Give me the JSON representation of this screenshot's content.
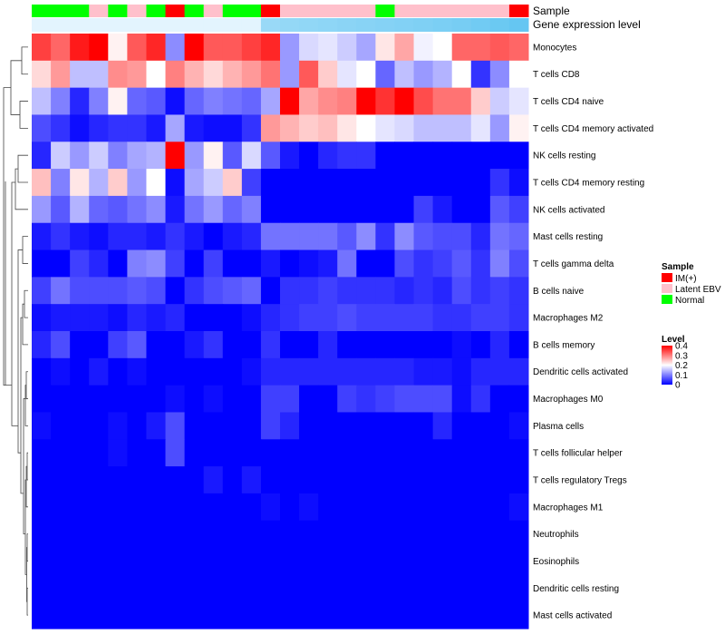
{
  "chart_data": {
    "type": "heatmap",
    "title": "",
    "rows": [
      "Monocytes",
      "T cells CD8",
      "T cells CD4 naive",
      "T cells CD4 memory activated",
      "NK cells resting",
      "T cells CD4 memory resting",
      "NK cells activated",
      "Mast cells resting",
      "T cells gamma delta",
      "B cells naive",
      "Macrophages M2",
      "B cells memory",
      "Dendritic cells activated",
      "Macrophages M0",
      "Plasma cells",
      "T cells follicular helper",
      "T cells regulatory  Tregs",
      "Macrophages M1",
      "Neutrophils",
      "Eosinophils",
      "Dendritic cells resting",
      "Mast cells activated"
    ],
    "annotations": {
      "sample_label": "Sample",
      "gene_label": "Gene expression level",
      "sample": [
        "Normal",
        "Normal",
        "Normal",
        "Latent EBV",
        "Normal",
        "Latent EBV",
        "Normal",
        "IM(+)",
        "Normal",
        "Latent EBV",
        "Normal",
        "Normal",
        "IM(+)",
        "Latent EBV",
        "Latent EBV",
        "Latent EBV",
        "Latent EBV",
        "Latent EBV",
        "Normal",
        "Latent EBV",
        "Latent EBV",
        "Latent EBV",
        "Latent EBV",
        "Latent EBV",
        "Latent EBV",
        "IM(+)"
      ],
      "gene_expression": [
        0.05,
        0.05,
        0.05,
        0.05,
        0.05,
        0.05,
        0.05,
        0.05,
        0.05,
        0.05,
        0.05,
        0.05,
        0.55,
        0.58,
        0.6,
        0.62,
        0.64,
        0.66,
        0.68,
        0.7,
        0.72,
        0.75,
        0.78,
        0.82,
        0.86,
        0.9
      ]
    },
    "values": [
      [
        0.35,
        0.32,
        0.38,
        0.41,
        0.21,
        0.33,
        0.37,
        0.11,
        0.41,
        0.33,
        0.33,
        0.35,
        0.37,
        0.12,
        0.17,
        0.18,
        0.16,
        0.13,
        0.22,
        0.27,
        0.19,
        0.2,
        0.32,
        0.32,
        0.33,
        0.32
      ],
      [
        0.23,
        0.28,
        0.15,
        0.15,
        0.29,
        0.28,
        0.2,
        0.3,
        0.26,
        0.23,
        0.26,
        0.28,
        0.31,
        0.12,
        0.33,
        0.24,
        0.18,
        0.2,
        0.08,
        0.15,
        0.12,
        0.14,
        0.2,
        0.04,
        0.11,
        0.2
      ],
      [
        0.15,
        0.1,
        0.03,
        0.1,
        0.21,
        0.08,
        0.07,
        0.01,
        0.08,
        0.1,
        0.09,
        0.08,
        0.13,
        0.41,
        0.27,
        0.29,
        0.3,
        0.41,
        0.36,
        0.4,
        0.34,
        0.31,
        0.31,
        0.24,
        0.16,
        0.18
      ],
      [
        0.06,
        0.04,
        0.01,
        0.03,
        0.04,
        0.04,
        0.02,
        0.13,
        0.02,
        0.01,
        0.01,
        0.04,
        0.28,
        0.26,
        0.24,
        0.25,
        0.22,
        0.2,
        0.18,
        0.17,
        0.15,
        0.15,
        0.15,
        0.18,
        0.12,
        0.21
      ],
      [
        0.03,
        0.16,
        0.12,
        0.16,
        0.1,
        0.13,
        0.14,
        0.41,
        0.12,
        0.21,
        0.07,
        0.17,
        0.07,
        0.02,
        0.0,
        0.03,
        0.04,
        0.04,
        0.0,
        0.0,
        0.0,
        0.0,
        0.0,
        0.0,
        0.0,
        0.0
      ],
      [
        0.25,
        0.1,
        0.22,
        0.14,
        0.24,
        0.12,
        0.2,
        0.01,
        0.13,
        0.16,
        0.24,
        0.05,
        0.0,
        0.0,
        0.0,
        0.0,
        0.0,
        0.0,
        0.0,
        0.0,
        0.0,
        0.0,
        0.0,
        0.0,
        0.04,
        0.01
      ],
      [
        0.12,
        0.07,
        0.14,
        0.08,
        0.07,
        0.09,
        0.11,
        0.02,
        0.09,
        0.12,
        0.08,
        0.1,
        0.0,
        0.0,
        0.0,
        0.0,
        0.0,
        0.0,
        0.0,
        0.0,
        0.05,
        0.02,
        0.0,
        0.0,
        0.07,
        0.05
      ],
      [
        0.02,
        0.04,
        0.02,
        0.01,
        0.03,
        0.03,
        0.02,
        0.04,
        0.02,
        0.0,
        0.02,
        0.03,
        0.09,
        0.09,
        0.09,
        0.09,
        0.07,
        0.11,
        0.04,
        0.11,
        0.07,
        0.06,
        0.06,
        0.03,
        0.09,
        0.08
      ],
      [
        0.0,
        0.0,
        0.05,
        0.03,
        0.0,
        0.1,
        0.11,
        0.05,
        0.0,
        0.05,
        0.0,
        0.0,
        0.02,
        0.0,
        0.01,
        0.02,
        0.09,
        0.0,
        0.0,
        0.06,
        0.04,
        0.05,
        0.07,
        0.04,
        0.1,
        0.06
      ],
      [
        0.05,
        0.09,
        0.06,
        0.06,
        0.06,
        0.07,
        0.06,
        0.0,
        0.04,
        0.06,
        0.07,
        0.08,
        0.0,
        0.04,
        0.04,
        0.05,
        0.04,
        0.04,
        0.04,
        0.03,
        0.04,
        0.03,
        0.06,
        0.04,
        0.05,
        0.04
      ],
      [
        0.01,
        0.02,
        0.02,
        0.02,
        0.01,
        0.03,
        0.02,
        0.03,
        0.0,
        0.0,
        0.0,
        0.01,
        0.03,
        0.04,
        0.05,
        0.05,
        0.06,
        0.05,
        0.05,
        0.05,
        0.05,
        0.04,
        0.04,
        0.05,
        0.05,
        0.04
      ],
      [
        0.03,
        0.06,
        0.0,
        0.0,
        0.05,
        0.07,
        0.0,
        0.0,
        0.02,
        0.04,
        0.0,
        0.0,
        0.04,
        0.0,
        0.0,
        0.03,
        0.0,
        0.0,
        0.0,
        0.0,
        0.0,
        0.0,
        0.01,
        0.0,
        0.03,
        0.0
      ],
      [
        0.0,
        0.01,
        0.0,
        0.02,
        0.0,
        0.01,
        0.0,
        0.0,
        0.0,
        0.0,
        0.0,
        0.01,
        0.03,
        0.03,
        0.03,
        0.03,
        0.03,
        0.03,
        0.03,
        0.03,
        0.02,
        0.02,
        0.01,
        0.03,
        0.03,
        0.03
      ],
      [
        0.0,
        0.0,
        0.0,
        0.0,
        0.0,
        0.0,
        0.0,
        0.01,
        0.0,
        0.01,
        0.0,
        0.0,
        0.05,
        0.05,
        0.0,
        0.0,
        0.05,
        0.04,
        0.05,
        0.06,
        0.06,
        0.06,
        0.01,
        0.04,
        0.0,
        0.0
      ],
      [
        0.01,
        0.0,
        0.0,
        0.0,
        0.01,
        0.0,
        0.02,
        0.06,
        0.0,
        0.0,
        0.0,
        0.0,
        0.05,
        0.03,
        0.0,
        0.0,
        0.0,
        0.0,
        0.0,
        0.0,
        0.0,
        0.03,
        0.0,
        0.0,
        0.0,
        0.01
      ],
      [
        0.0,
        0.0,
        0.0,
        0.0,
        0.01,
        0.0,
        0.0,
        0.06,
        0.0,
        0.0,
        0.0,
        0.0,
        0.0,
        0.0,
        0.0,
        0.0,
        0.0,
        0.0,
        0.0,
        0.0,
        0.0,
        0.0,
        0.0,
        0.0,
        0.0,
        0.0
      ],
      [
        0.0,
        0.0,
        0.0,
        0.0,
        0.0,
        0.0,
        0.0,
        0.0,
        0.0,
        0.02,
        0.0,
        0.02,
        0.0,
        0.0,
        0.0,
        0.0,
        0.0,
        0.0,
        0.0,
        0.0,
        0.0,
        0.0,
        0.0,
        0.0,
        0.0,
        0.0
      ],
      [
        0.0,
        0.0,
        0.0,
        0.0,
        0.0,
        0.0,
        0.0,
        0.0,
        0.0,
        0.0,
        0.0,
        0.0,
        0.01,
        0.0,
        0.01,
        0.0,
        0.0,
        0.0,
        0.0,
        0.0,
        0.0,
        0.0,
        0.0,
        0.0,
        0.0,
        0.01
      ],
      [
        0.0,
        0.0,
        0.0,
        0.0,
        0.0,
        0.0,
        0.0,
        0.0,
        0.0,
        0.0,
        0.0,
        0.0,
        0.0,
        0.0,
        0.0,
        0.0,
        0.0,
        0.0,
        0.0,
        0.0,
        0.0,
        0.0,
        0.0,
        0.0,
        0.0,
        0.0
      ],
      [
        0.0,
        0.0,
        0.0,
        0.0,
        0.0,
        0.0,
        0.0,
        0.0,
        0.0,
        0.0,
        0.0,
        0.0,
        0.0,
        0.0,
        0.0,
        0.0,
        0.0,
        0.0,
        0.0,
        0.0,
        0.0,
        0.0,
        0.0,
        0.0,
        0.0,
        0.0
      ],
      [
        0.0,
        0.0,
        0.0,
        0.0,
        0.0,
        0.0,
        0.0,
        0.0,
        0.0,
        0.0,
        0.0,
        0.0,
        0.0,
        0.0,
        0.0,
        0.0,
        0.0,
        0.0,
        0.0,
        0.0,
        0.0,
        0.0,
        0.0,
        0.0,
        0.0,
        0.0
      ],
      [
        0.0,
        0.0,
        0.0,
        0.0,
        0.0,
        0.0,
        0.0,
        0.0,
        0.0,
        0.0,
        0.0,
        0.0,
        0.0,
        0.0,
        0.0,
        0.0,
        0.0,
        0.0,
        0.0,
        0.0,
        0.0,
        0.0,
        0.0,
        0.0,
        0.0,
        0.0
      ]
    ],
    "color_scale": {
      "min": 0,
      "mid": 0.2,
      "max": 0.4,
      "low": "#0000FF",
      "midcolor": "#FFFFFF",
      "high": "#FF0000"
    },
    "legend": {
      "sample_title": "Sample",
      "sample_items": [
        {
          "label": "IM(+)",
          "color": "#FF0000"
        },
        {
          "label": "Latent EBV",
          "color": "#FFC0CB"
        },
        {
          "label": "Normal",
          "color": "#00FF00"
        }
      ],
      "level_title": "Level",
      "level_ticks": [
        "0.4",
        "0.3",
        "0.2",
        "0.1",
        "0"
      ],
      "level_values": [
        0.4,
        0.3,
        0.2,
        0.1,
        0
      ]
    },
    "gene_colors": {
      "low": "#EAF7FF",
      "high": "#56C1F0"
    }
  }
}
